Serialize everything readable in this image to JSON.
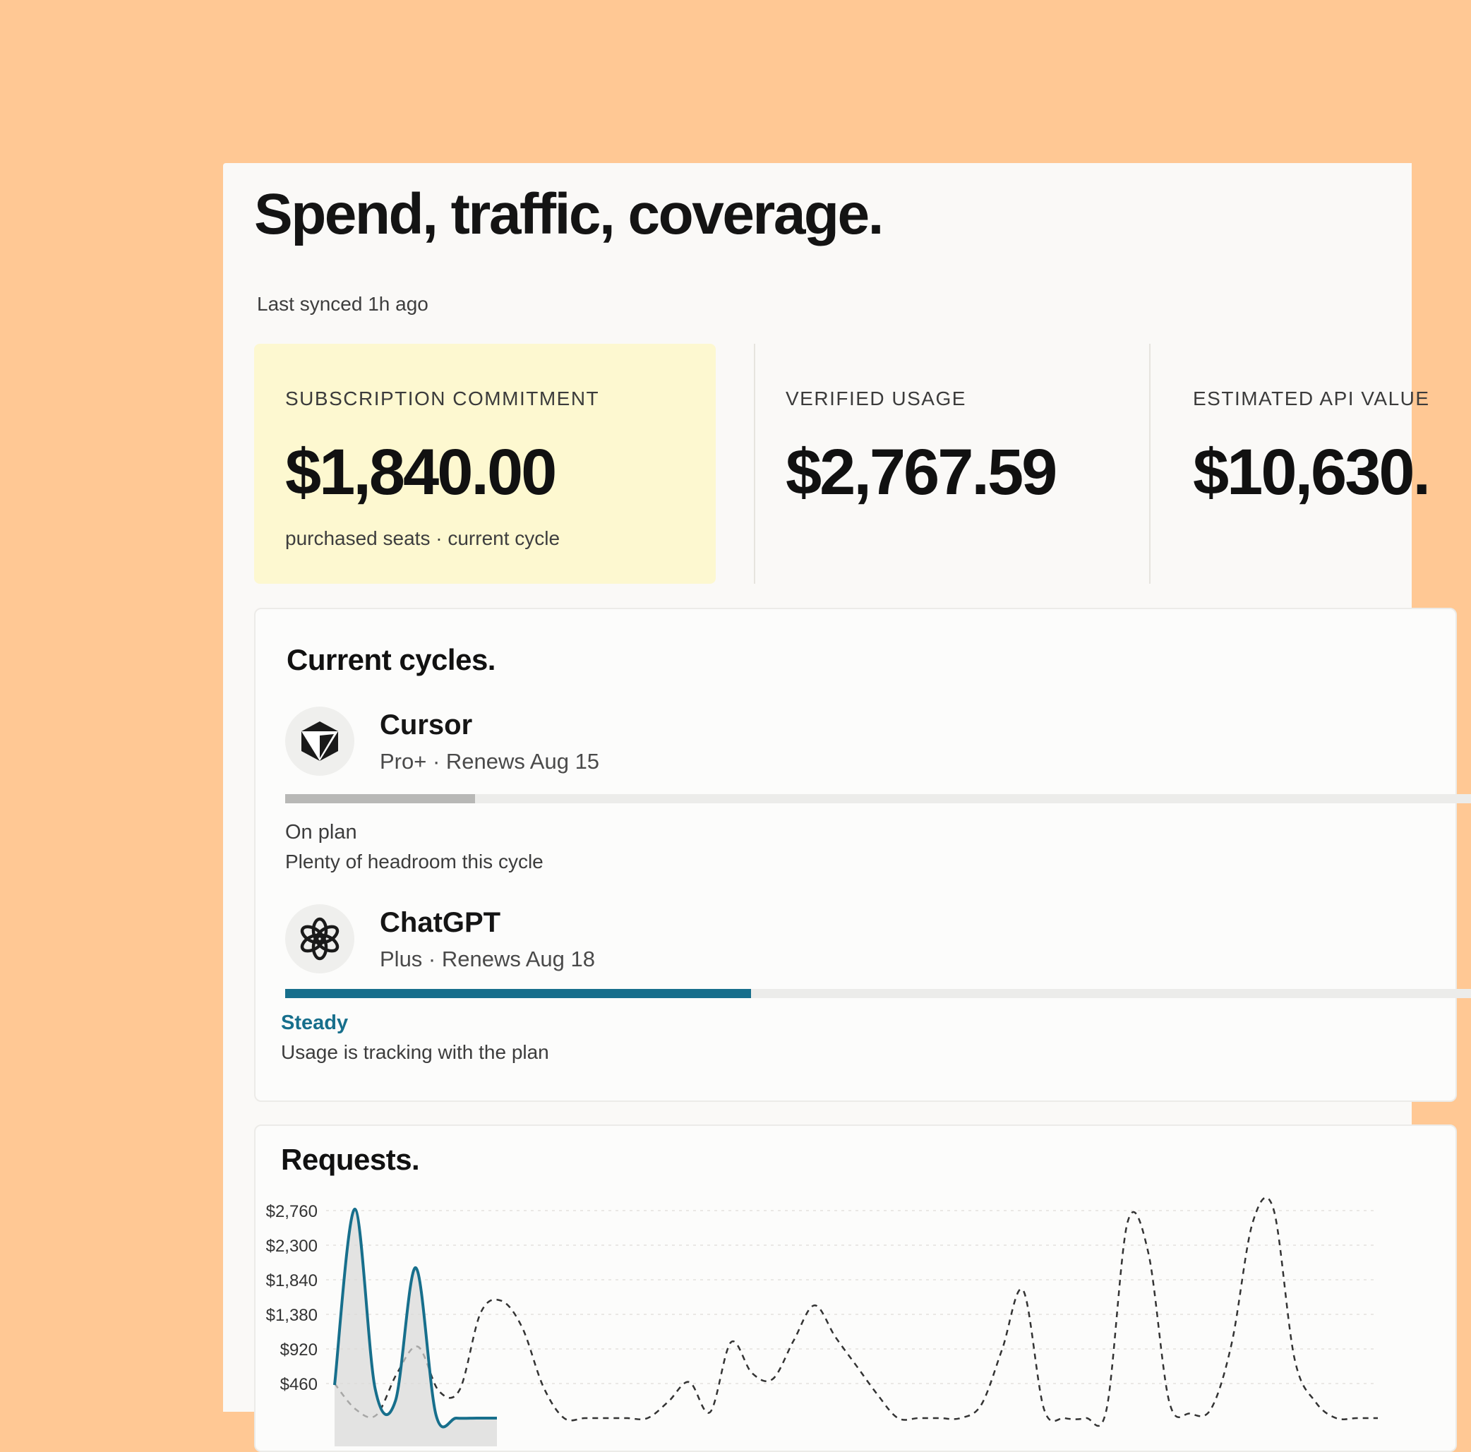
{
  "header": {
    "title": "Spend, traffic, coverage.",
    "synced": "Last synced 1h ago"
  },
  "stats": [
    {
      "label": "SUBSCRIPTION COMMITMENT",
      "value": "$1,840.00",
      "note": "purchased seats · current cycle"
    },
    {
      "label": "VERIFIED USAGE",
      "value": "$2,767.59"
    },
    {
      "label": "ESTIMATED API VALUE",
      "value": "$10,630."
    }
  ],
  "cycles": {
    "title": "Current cycles.",
    "items": [
      {
        "name": "Cursor",
        "meta": "Pro+ · Renews Aug 15",
        "status": "On plan",
        "status_desc": "Plenty of headroom this cycle",
        "progress": 0.16,
        "bar_color": "#b8b8b6",
        "icon": "cursor-cube-icon"
      },
      {
        "name": "ChatGPT",
        "meta": "Plus · Renews Aug 18",
        "status": "Steady",
        "status_desc": "Usage is tracking with the plan",
        "progress": 0.393,
        "bar_color": "#176f8c",
        "icon": "openai-knot-icon"
      }
    ]
  },
  "requests": {
    "title": "Requests."
  },
  "chart_data": {
    "type": "line",
    "title": "Requests.",
    "y_ticks": [
      "$2,760",
      "$2,300",
      "$1,840",
      "$1,380",
      "$920",
      "$460"
    ],
    "ylim": [
      0,
      2760
    ],
    "grid": true,
    "series": [
      {
        "style": "solid-area",
        "color": "#176f8c",
        "x": [
          0,
          1,
          2,
          3,
          4,
          5,
          6,
          7,
          8
        ],
        "values": [
          440,
          2780,
          390,
          230,
          2000,
          40,
          0,
          0,
          0
        ]
      },
      {
        "style": "dashed",
        "color": "#333333",
        "x": [
          0,
          2,
          4,
          6,
          8,
          10,
          12,
          14,
          16,
          18,
          20,
          22,
          24,
          26,
          28,
          30,
          32,
          34,
          36,
          38,
          40,
          42,
          44,
          46,
          48,
          50,
          52,
          54,
          56,
          58,
          60,
          62,
          64,
          66,
          68,
          70,
          72,
          74,
          76,
          78,
          80,
          82,
          84,
          86,
          88,
          90,
          92,
          94,
          96,
          98,
          100
        ],
        "values": [
          460,
          120,
          40,
          600,
          950,
          360,
          380,
          1400,
          1560,
          1200,
          420,
          0,
          0,
          0,
          0,
          0,
          220,
          480,
          80,
          1010,
          600,
          520,
          1030,
          1500,
          1080,
          700,
          320,
          0,
          0,
          0,
          0,
          180,
          920,
          1700,
          120,
          0,
          0,
          120,
          2600,
          2200,
          220,
          60,
          120,
          1000,
          2600,
          2780,
          800,
          220,
          0,
          0,
          0
        ]
      }
    ]
  }
}
